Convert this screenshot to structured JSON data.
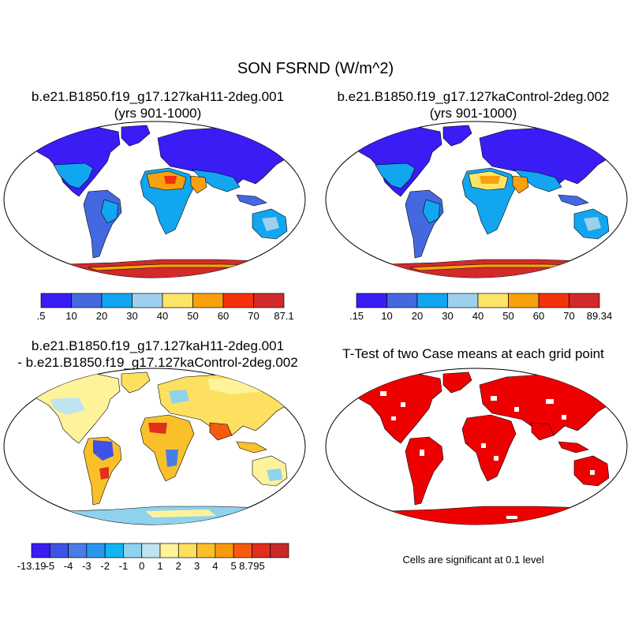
{
  "figure": {
    "title": "SON FSRND (W/m^2)"
  },
  "panels": [
    {
      "title_line1": "b.e21.B1850.f19_g17.127kaH11-2deg.001",
      "title_line2": "(yrs 901-1000)",
      "colorbar": {
        "labels": [
          ".5",
          "10",
          "20",
          "30",
          "40",
          "50",
          "60",
          "70",
          "87.1"
        ],
        "colors": [
          "#3a1cf5",
          "#4468e0",
          "#12a6f0",
          "#9dd0ee",
          "#fce467",
          "#f8a10d",
          "#f4310c",
          "#d22a2a"
        ]
      }
    },
    {
      "title_line1": "b.e21.B1850.f19_g17.127kaControl-2deg.002",
      "title_line2": "(yrs 901-1000)",
      "colorbar": {
        "labels": [
          ".15",
          "10",
          "20",
          "30",
          "40",
          "50",
          "60",
          "70",
          "89.34"
        ],
        "colors": [
          "#3a1cf5",
          "#4468e0",
          "#12a6f0",
          "#9dd0ee",
          "#fce467",
          "#f8a10d",
          "#f4310c",
          "#d22a2a"
        ]
      }
    },
    {
      "title_line1": "b.e21.B1850.f19_g17.127kaH11-2deg.001",
      "title_line2": "- b.e21.B1850.f19_g17.127kaControl-2deg.002",
      "colorbar": {
        "labels": [
          "-13.19",
          "-5",
          "-4",
          "-3",
          "-2",
          "-1",
          "0",
          "1",
          "2",
          "3",
          "4",
          "5",
          "8.795"
        ],
        "colors": [
          "#3a1cf5",
          "#3f52e6",
          "#4a7ce6",
          "#2b95ee",
          "#12b4f2",
          "#8fd2ee",
          "#bfe4f0",
          "#fef39a",
          "#fde060",
          "#f9c02a",
          "#f89a0e",
          "#f45a10",
          "#e22e1c",
          "#c82a2a"
        ]
      }
    },
    {
      "title_line1": "T-Test of two Case means at each grid point",
      "note": "Cells are significant at 0.1 level",
      "significant_color": "#ee0000"
    }
  ]
}
